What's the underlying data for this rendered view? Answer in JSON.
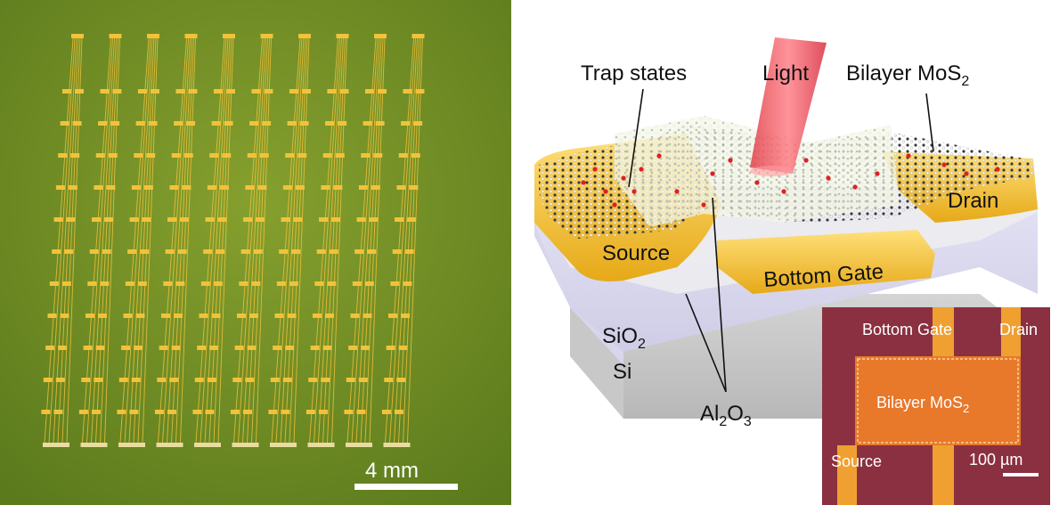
{
  "photo": {
    "scale_bar_label": "4 mm",
    "device_columns": 10,
    "device_rows": 11
  },
  "schematic": {
    "trap_states": "Trap states",
    "light": "Light",
    "bilayer": "Bilayer MoS",
    "bilayer_sub": "2",
    "source": "Source",
    "drain": "Drain",
    "bottom_gate": "Bottom Gate",
    "sio2": "SiO",
    "sio2_sub": "2",
    "si": "Si",
    "al2o3_a": "Al",
    "al2o3_sub1": "2",
    "al2o3_b": "O",
    "al2o3_sub2": "3"
  },
  "inset": {
    "bottom_gate": "Bottom Gate",
    "drain": "Drain",
    "bilayer": "Bilayer MoS",
    "bilayer_sub": "2",
    "source": "Source",
    "scale_bar_label": "100 µm"
  },
  "colors": {
    "photo_bg": "#6e8a22",
    "gold": "#f2c23a",
    "inset_bg": "#8a3040",
    "inset_channel": "#e8782a"
  }
}
